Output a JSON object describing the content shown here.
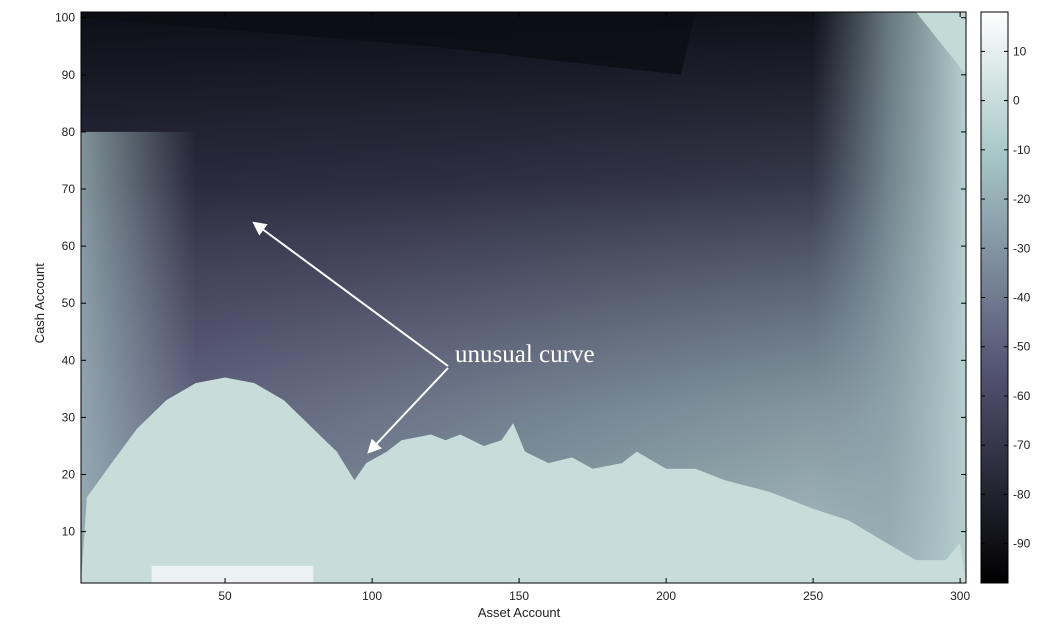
{
  "chart_data": {
    "type": "heatmap",
    "title": "",
    "xlabel": "Asset Account",
    "ylabel": "Cash Account",
    "xlim": [
      1,
      302
    ],
    "ylim": [
      1,
      101
    ],
    "xticks": [
      50,
      100,
      150,
      200,
      250,
      300
    ],
    "yticks": [
      10,
      20,
      30,
      40,
      50,
      60,
      70,
      80,
      90,
      100
    ],
    "grid": false,
    "colorbar": {
      "position": "right",
      "range": [
        -98,
        18
      ],
      "ticks": [
        10,
        0,
        -10,
        -20,
        -30,
        -40,
        -50,
        -60,
        -70,
        -80,
        -90
      ],
      "colormap": "bone"
    },
    "annotation": {
      "text": "unusual curve",
      "arrow_targets": [
        {
          "x": 60,
          "y": 64
        },
        {
          "x": 99,
          "y": 24
        }
      ]
    },
    "boundary_curve": [
      [
        3,
        16
      ],
      [
        10,
        21
      ],
      [
        20,
        28
      ],
      [
        30,
        33
      ],
      [
        40,
        36
      ],
      [
        50,
        37
      ],
      [
        60,
        36
      ],
      [
        70,
        33
      ],
      [
        80,
        28
      ],
      [
        88,
        24
      ],
      [
        94,
        19
      ],
      [
        98,
        22
      ],
      [
        105,
        24
      ],
      [
        110,
        26
      ],
      [
        120,
        27
      ],
      [
        125,
        26
      ],
      [
        130,
        27
      ],
      [
        138,
        25
      ],
      [
        144,
        26
      ],
      [
        148,
        29
      ],
      [
        152,
        24
      ],
      [
        160,
        22
      ],
      [
        168,
        23
      ],
      [
        175,
        21
      ],
      [
        185,
        22
      ],
      [
        190,
        24
      ],
      [
        200,
        21
      ],
      [
        210,
        21
      ],
      [
        220,
        19
      ],
      [
        235,
        17
      ],
      [
        250,
        14
      ],
      [
        262,
        12
      ],
      [
        275,
        8
      ],
      [
        285,
        5
      ],
      [
        295,
        5
      ],
      [
        300,
        8
      ]
    ]
  }
}
